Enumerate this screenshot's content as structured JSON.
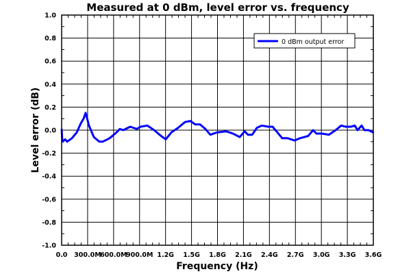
{
  "chart_data": {
    "type": "line",
    "title": "Measured at 0 dBm, level error vs. frequency",
    "xlabel": "Frequency (Hz)",
    "ylabel": "Level error (dB)",
    "x_unit": "MHz",
    "xlim": [
      0,
      3600
    ],
    "ylim": [
      -1.0,
      1.0
    ],
    "x_ticks": [
      0,
      300,
      600,
      900,
      1200,
      1500,
      1800,
      2100,
      2400,
      2700,
      3000,
      3300,
      3600
    ],
    "x_tick_labels": [
      "0.0",
      "300.0M",
      "600.0M",
      "900.0M",
      "1.2G",
      "1.5G",
      "1.8G",
      "2.1G",
      "2.4G",
      "2.7G",
      "3.0G",
      "3.3G",
      "3.6G"
    ],
    "y_ticks": [
      1.0,
      0.8,
      0.6,
      0.4,
      0.2,
      0.0,
      -0.2,
      -0.4,
      -0.6,
      -0.8,
      -1.0
    ],
    "y_tick_labels": [
      "1.0",
      "0.8",
      "0.6",
      "0.4",
      "0.2",
      "0.0",
      "-0.2",
      "-0.4",
      "-0.6",
      "-0.8",
      "-1.0"
    ],
    "grid": true,
    "legend_position": "top-right",
    "series": [
      {
        "name": "0 dBm output error",
        "color": "#0000ff",
        "points": [
          [
            0,
            0.01
          ],
          [
            8,
            -0.1
          ],
          [
            40,
            -0.08
          ],
          [
            63,
            -0.1
          ],
          [
            119,
            -0.07
          ],
          [
            174,
            -0.02
          ],
          [
            222,
            0.06
          ],
          [
            253,
            0.1
          ],
          [
            277,
            0.15
          ],
          [
            316,
            0.04
          ],
          [
            372,
            -0.06
          ],
          [
            435,
            -0.1
          ],
          [
            475,
            -0.1
          ],
          [
            554,
            -0.07
          ],
          [
            633,
            -0.02
          ],
          [
            672,
            0.01
          ],
          [
            712,
            0.0
          ],
          [
            791,
            0.03
          ],
          [
            870,
            0.01
          ],
          [
            910,
            0.03
          ],
          [
            989,
            0.04
          ],
          [
            1068,
            0.0
          ],
          [
            1147,
            -0.05
          ],
          [
            1203,
            -0.08
          ],
          [
            1266,
            -0.02
          ],
          [
            1345,
            0.02
          ],
          [
            1424,
            0.07
          ],
          [
            1487,
            0.08
          ],
          [
            1543,
            0.05
          ],
          [
            1598,
            0.05
          ],
          [
            1661,
            0.01
          ],
          [
            1717,
            -0.04
          ],
          [
            1791,
            -0.02
          ],
          [
            1899,
            -0.01
          ],
          [
            1978,
            -0.03
          ],
          [
            2057,
            -0.06
          ],
          [
            2113,
            -0.01
          ],
          [
            2152,
            -0.04
          ],
          [
            2200,
            -0.04
          ],
          [
            2255,
            0.02
          ],
          [
            2310,
            0.04
          ],
          [
            2389,
            0.03
          ],
          [
            2437,
            0.03
          ],
          [
            2492,
            -0.02
          ],
          [
            2548,
            -0.07
          ],
          [
            2611,
            -0.07
          ],
          [
            2690,
            -0.09
          ],
          [
            2753,
            -0.07
          ],
          [
            2848,
            -0.05
          ],
          [
            2904,
            0.0
          ],
          [
            2943,
            -0.03
          ],
          [
            3006,
            -0.03
          ],
          [
            3086,
            -0.04
          ],
          [
            3165,
            0.0
          ],
          [
            3228,
            0.04
          ],
          [
            3283,
            0.03
          ],
          [
            3339,
            0.03
          ],
          [
            3386,
            0.04
          ],
          [
            3418,
            0.0
          ],
          [
            3465,
            0.04
          ],
          [
            3497,
            0.0
          ],
          [
            3545,
            0.0
          ],
          [
            3600,
            -0.02
          ]
        ]
      }
    ]
  }
}
